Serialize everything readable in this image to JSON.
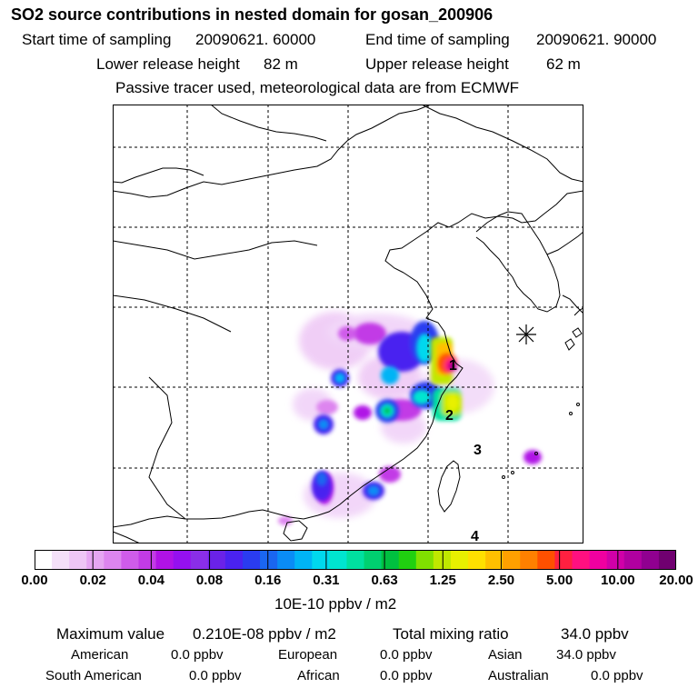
{
  "title": "SO2 source contributions in nested domain for gosan_200906",
  "header": {
    "start_label": "Start time of sampling",
    "start_value": "20090621. 60000",
    "end_label": "End time of sampling",
    "end_value": "20090621. 90000",
    "lower_label": "Lower release height",
    "lower_value": "82 m",
    "upper_label": "Upper release height",
    "upper_value": "62 m",
    "note": "Passive tracer used, meteorological data are from ECMWF"
  },
  "map": {
    "labels": [
      "1",
      "2",
      "3",
      "4"
    ],
    "receptor_icon": "asterisk-icon"
  },
  "colorbar": {
    "ticks": [
      "0.00",
      "0.02",
      "0.04",
      "0.08",
      "0.16",
      "0.31",
      "0.63",
      "1.25",
      "2.50",
      "5.00",
      "10.00",
      "20.00"
    ],
    "unit": "10E-10 ppbv / m2",
    "colors": [
      "#ffffff",
      "#f4e0f8",
      "#eec6f5",
      "#e6a6f2",
      "#dd85ef",
      "#cf5cea",
      "#c23be6",
      "#b012e6",
      "#9510f0",
      "#8a2ee8",
      "#6a22e8",
      "#4a22f0",
      "#2a3cf0",
      "#1a66f0",
      "#0a8cf5",
      "#00b4f5",
      "#00d8ee",
      "#00e5d0",
      "#00e0a0",
      "#00d070",
      "#00c040",
      "#20d010",
      "#80e000",
      "#c0e800",
      "#e8f000",
      "#ffe000",
      "#ffc000",
      "#ffa000",
      "#ff8000",
      "#ff5000",
      "#ff2040",
      "#ff1080",
      "#f000a0",
      "#d000a8",
      "#b000a0",
      "#900090",
      "#700070"
    ]
  },
  "footer": {
    "max_label": "Maximum value",
    "max_value": "0.210E-08 ppbv / m2",
    "total_label": "Total mixing ratio",
    "total_value": "34.0 ppbv",
    "regions": [
      {
        "name": "American",
        "value": "0.0 ppbv"
      },
      {
        "name": "European",
        "value": "0.0 ppbv"
      },
      {
        "name": "Asian",
        "value": "34.0 ppbv"
      },
      {
        "name": "South American",
        "value": "0.0 ppbv"
      },
      {
        "name": "African",
        "value": "0.0 ppbv"
      },
      {
        "name": "Australian",
        "value": "0.0 ppbv"
      }
    ]
  }
}
